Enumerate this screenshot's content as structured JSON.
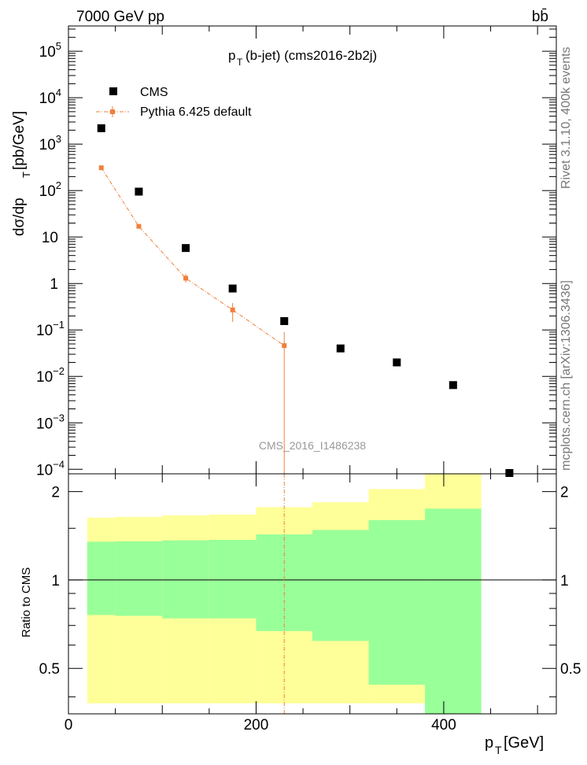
{
  "header": {
    "energy": "7000 GeV pp",
    "process": "bb̄",
    "title_main": "p",
    "title_sub": "T",
    "title_rest": "(b-jet) (cms2016-2b2j)"
  },
  "side_labels": {
    "rivet": "Rivet 3.1.10, 400k events",
    "mcplots": "mcplots.cern.ch [arXiv:1306.3436]"
  },
  "watermark": "CMS_2016_I1486238",
  "colors": {
    "data": "#000000",
    "mc": "#f07f3c",
    "band_inner": "#99ff99",
    "band_outer": "#ffff99"
  },
  "chart_data": [
    {
      "type": "scatter",
      "panel": "main",
      "yscale": "log",
      "ylabel_parts": [
        "dσ/dp",
        "T",
        " [pb/GeV]"
      ],
      "xlim": [
        0,
        520
      ],
      "ylim": [
        8e-05,
        350000
      ],
      "yticks": [
        {
          "v": 100000,
          "base": "10",
          "exp": "5"
        },
        {
          "v": 10000,
          "base": "10",
          "exp": "4"
        },
        {
          "v": 1000,
          "base": "10",
          "exp": "3"
        },
        {
          "v": 100,
          "base": "10",
          "exp": "2"
        },
        {
          "v": 10,
          "base": "10",
          "exp": ""
        },
        {
          "v": 1,
          "base": "1",
          "exp": ""
        },
        {
          "v": 0.1,
          "base": "10",
          "exp": "−1"
        },
        {
          "v": 0.01,
          "base": "10",
          "exp": "−2"
        },
        {
          "v": 0.001,
          "base": "10",
          "exp": "−3"
        },
        {
          "v": 0.0001,
          "base": "10",
          "exp": "−4"
        }
      ],
      "legend": [
        "CMS",
        "Pythia 6.425 default"
      ],
      "series": [
        {
          "name": "CMS",
          "x": [
            35,
            75,
            125,
            175,
            230,
            290,
            350,
            410,
            470
          ],
          "y": [
            2200,
            95,
            5.8,
            0.78,
            0.155,
            0.04,
            0.02,
            0.0065,
            8e-05
          ]
        },
        {
          "name": "Pythia 6.425 default",
          "x": [
            35,
            75,
            125,
            175,
            230
          ],
          "y": [
            310,
            17,
            1.3,
            0.27,
            0.046
          ],
          "err_low": [
            300,
            16,
            1.05,
            0.15,
            0.0
          ],
          "err_high": [
            320,
            18,
            1.6,
            0.38,
            0.09
          ]
        }
      ]
    },
    {
      "type": "area",
      "panel": "ratio",
      "ylabel": "Ratio to CMS",
      "xlabel_parts": [
        "p",
        "T",
        " [GeV]"
      ],
      "xlim": [
        0,
        520
      ],
      "ylim": [
        0.35,
        2.3
      ],
      "xticks": [
        0,
        200,
        400
      ],
      "yticks": [
        0.5,
        1,
        2
      ],
      "bins": [
        {
          "lo": 20,
          "hi": 50,
          "inner": [
            0.76,
            1.35
          ],
          "outer": [
            0.38,
            1.63
          ]
        },
        {
          "lo": 50,
          "hi": 100,
          "inner": [
            0.755,
            1.355
          ],
          "outer": [
            0.38,
            1.64
          ]
        },
        {
          "lo": 100,
          "hi": 150,
          "inner": [
            0.74,
            1.365
          ],
          "outer": [
            0.38,
            1.66
          ]
        },
        {
          "lo": 150,
          "hi": 200,
          "inner": [
            0.74,
            1.37
          ],
          "outer": [
            0.38,
            1.67
          ]
        },
        {
          "lo": 200,
          "hi": 260,
          "inner": [
            0.67,
            1.43
          ],
          "outer": [
            0.38,
            1.77
          ]
        },
        {
          "lo": 260,
          "hi": 320,
          "inner": [
            0.62,
            1.48
          ],
          "outer": [
            0.38,
            1.84
          ]
        },
        {
          "lo": 320,
          "hi": 380,
          "inner": [
            0.44,
            1.6
          ],
          "outer": [
            0.38,
            2.04
          ]
        },
        {
          "lo": 380,
          "hi": 440,
          "inner": [
            0.35,
            1.75
          ],
          "outer": [
            0.38,
            2.3
          ]
        }
      ],
      "reference_line": 1
    }
  ]
}
